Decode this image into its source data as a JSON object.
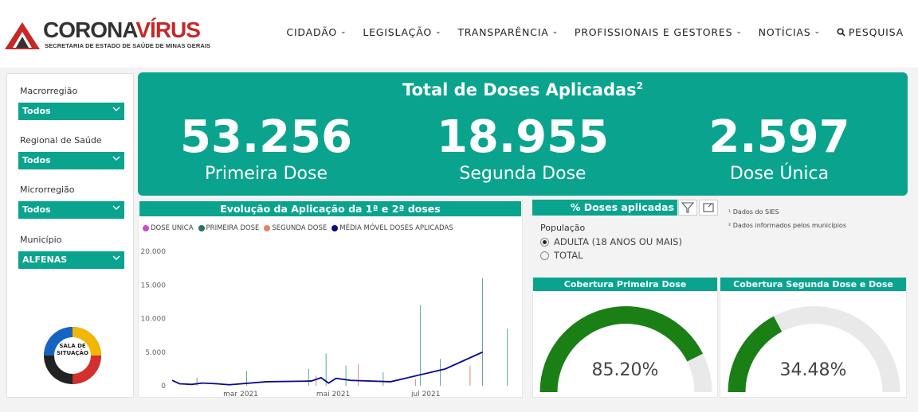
{
  "header": {
    "logo_main": "CORONA",
    "logo_accent": "VÍRUS",
    "logo_sub": "SECRETARIA DE ESTADO DE SAÚDE DE MINAS GERAIS",
    "nav": [
      "CIDADÃO",
      "LEGISLAÇÃO",
      "TRANSPARÊNCIA",
      "PROFISSIONAIS E GESTORES",
      "NOTÍCIAS"
    ],
    "search_label": "PESQUISA"
  },
  "filters": [
    {
      "label": "Macrorregião",
      "value": "Todos"
    },
    {
      "label": "Regional de Saúde",
      "value": "Todos"
    },
    {
      "label": "Microrregião",
      "value": "Todos"
    },
    {
      "label": "Município",
      "value": "ALFENAS"
    }
  ],
  "sala_text": "SALA DE SITUAÇÃO",
  "banner": {
    "title": "Total de Doses Aplicadas",
    "title_sup": "2",
    "stats": [
      {
        "value": "53.256",
        "label": "Primeira Dose"
      },
      {
        "value": "18.955",
        "label": "Segunda Dose"
      },
      {
        "value": "2.597",
        "label": "Dose Única"
      }
    ]
  },
  "chart": {
    "title": "Evolução da Aplicação da 1ª e 2ª doses",
    "legend": [
      {
        "name": "DOSE UNICA",
        "color": "#c94fc4"
      },
      {
        "name": "PRIMEIRA DOSE",
        "color": "#2f6f68"
      },
      {
        "name": "SEGUNDA DOSE",
        "color": "#e8806a"
      },
      {
        "name": "MÉDIA MÓVEL DOSES APLICADAS",
        "color": "#0a0a8c"
      }
    ]
  },
  "chart_data": {
    "type": "line",
    "y_ticks": [
      "20.000",
      "15.000",
      "10.000",
      "5.000",
      "0"
    ],
    "x_ticks": [
      "mar 2021",
      "mai 2021",
      "jul 2021"
    ],
    "ylim": [
      0,
      20000
    ],
    "series": [
      {
        "name": "MÉDIA MÓVEL DOSES APLICADAS",
        "x": [
          0,
          3,
          8,
          12,
          18,
          23,
          38,
          56,
          60,
          63,
          66,
          72,
          88,
          110,
          125
        ],
        "y": [
          800,
          300,
          200,
          400,
          300,
          150,
          600,
          700,
          1200,
          400,
          1100,
          800,
          600,
          2500,
          5000
        ]
      },
      {
        "name": "PRIMEIRA DOSE",
        "x": [
          10,
          30,
          55,
          62,
          70,
          85,
          100,
          108,
          125,
          135
        ],
        "y": [
          1200,
          2200,
          2500,
          4800,
          3000,
          2000,
          12000,
          4000,
          16000,
          8500
        ]
      },
      {
        "name": "SEGUNDA DOSE",
        "x": [
          58,
          75,
          98,
          120
        ],
        "y": [
          1500,
          3200,
          1000,
          3000
        ]
      }
    ],
    "x_range": [
      0,
      138
    ]
  },
  "pct": {
    "title": "% Doses aplicadas",
    "pop_label": "População",
    "options": [
      "ADULTA (18 ANOS OU MAIS)",
      "TOTAL"
    ],
    "selected": 0
  },
  "notes": [
    "¹ Dados do SIES",
    "² Dados informados pelos municípios"
  ],
  "gauges": [
    {
      "title": "Cobertura Primeira Dose",
      "value_text": "85.20%",
      "fraction": 0.852
    },
    {
      "title": "Cobertura Segunda Dose e Dose Única",
      "value_text": "34.48%",
      "fraction": 0.3448
    }
  ],
  "colors": {
    "teal": "#0aa48e",
    "gauge_fill": "#1a7f14",
    "gauge_bg": "#e9e9e9"
  }
}
